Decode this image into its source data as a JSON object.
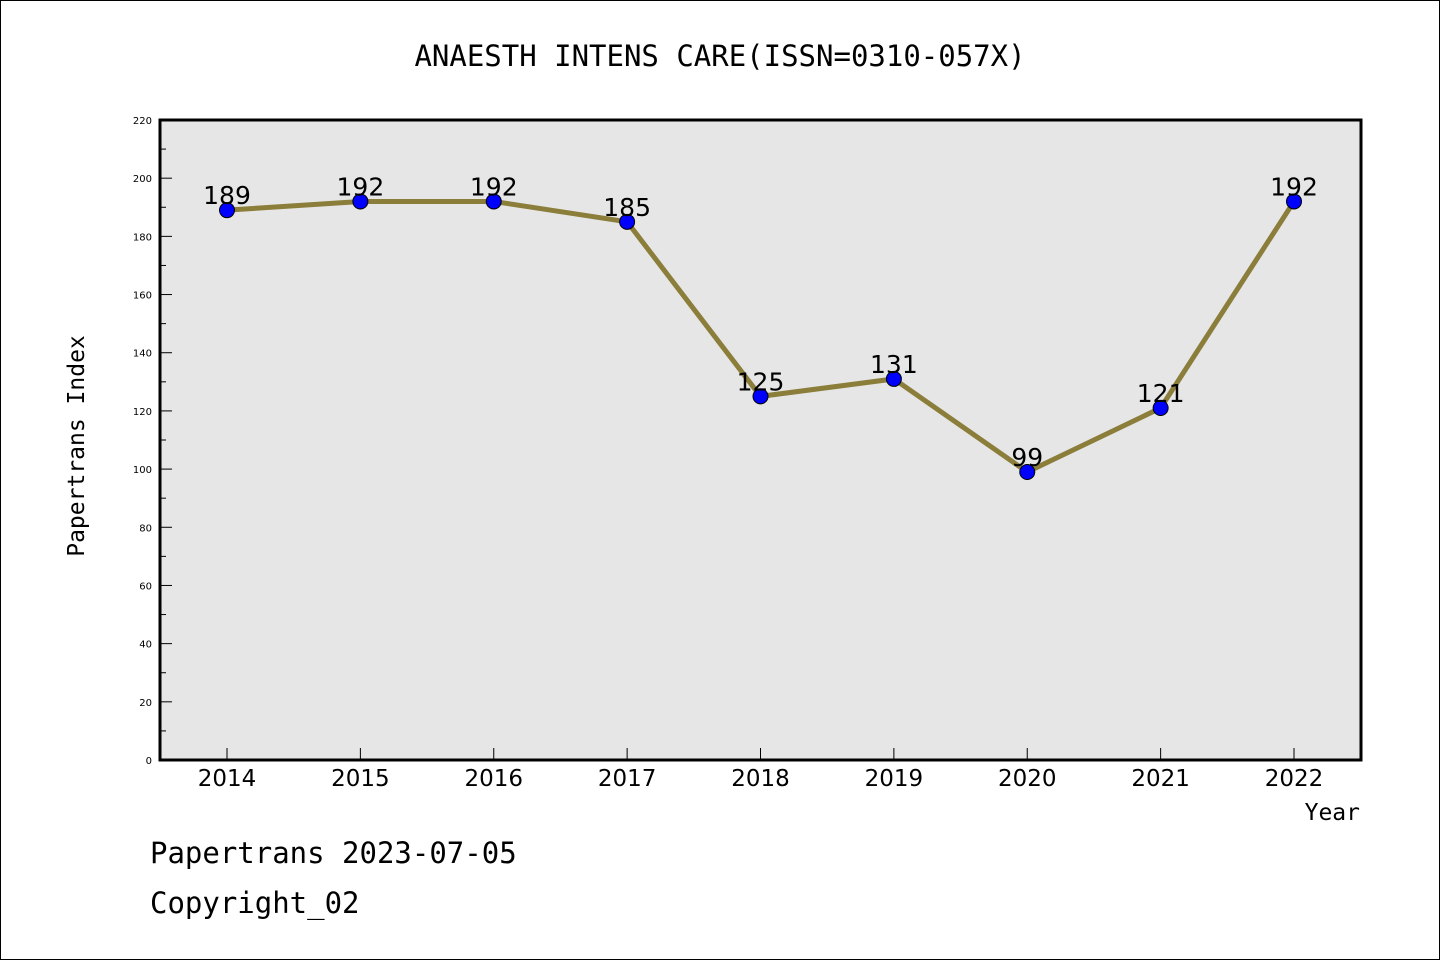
{
  "chart_data": {
    "type": "line",
    "title": "ANAESTH INTENS CARE(ISSN=0310-057X)",
    "xlabel": "Year",
    "ylabel": "Papertrans Index",
    "categories": [
      "2014",
      "2015",
      "2016",
      "2017",
      "2018",
      "2019",
      "2020",
      "2021",
      "2022"
    ],
    "series": [
      {
        "values": [
          189,
          192,
          192,
          185,
          125,
          131,
          99,
          121,
          192
        ]
      }
    ],
    "ylim": [
      0,
      220
    ],
    "yticks": [
      0,
      20,
      40,
      60,
      80,
      100,
      120,
      140,
      160,
      180,
      200,
      220
    ],
    "grid": false,
    "legend": "none",
    "colors": {
      "line": "#8B7D3A",
      "marker": "#0000FF",
      "plot_background": "#E6E6E6",
      "axes_border": "#000000"
    }
  },
  "footer": {
    "line1": "Papertrans 2023-07-05",
    "line2": "Copyright_02"
  }
}
